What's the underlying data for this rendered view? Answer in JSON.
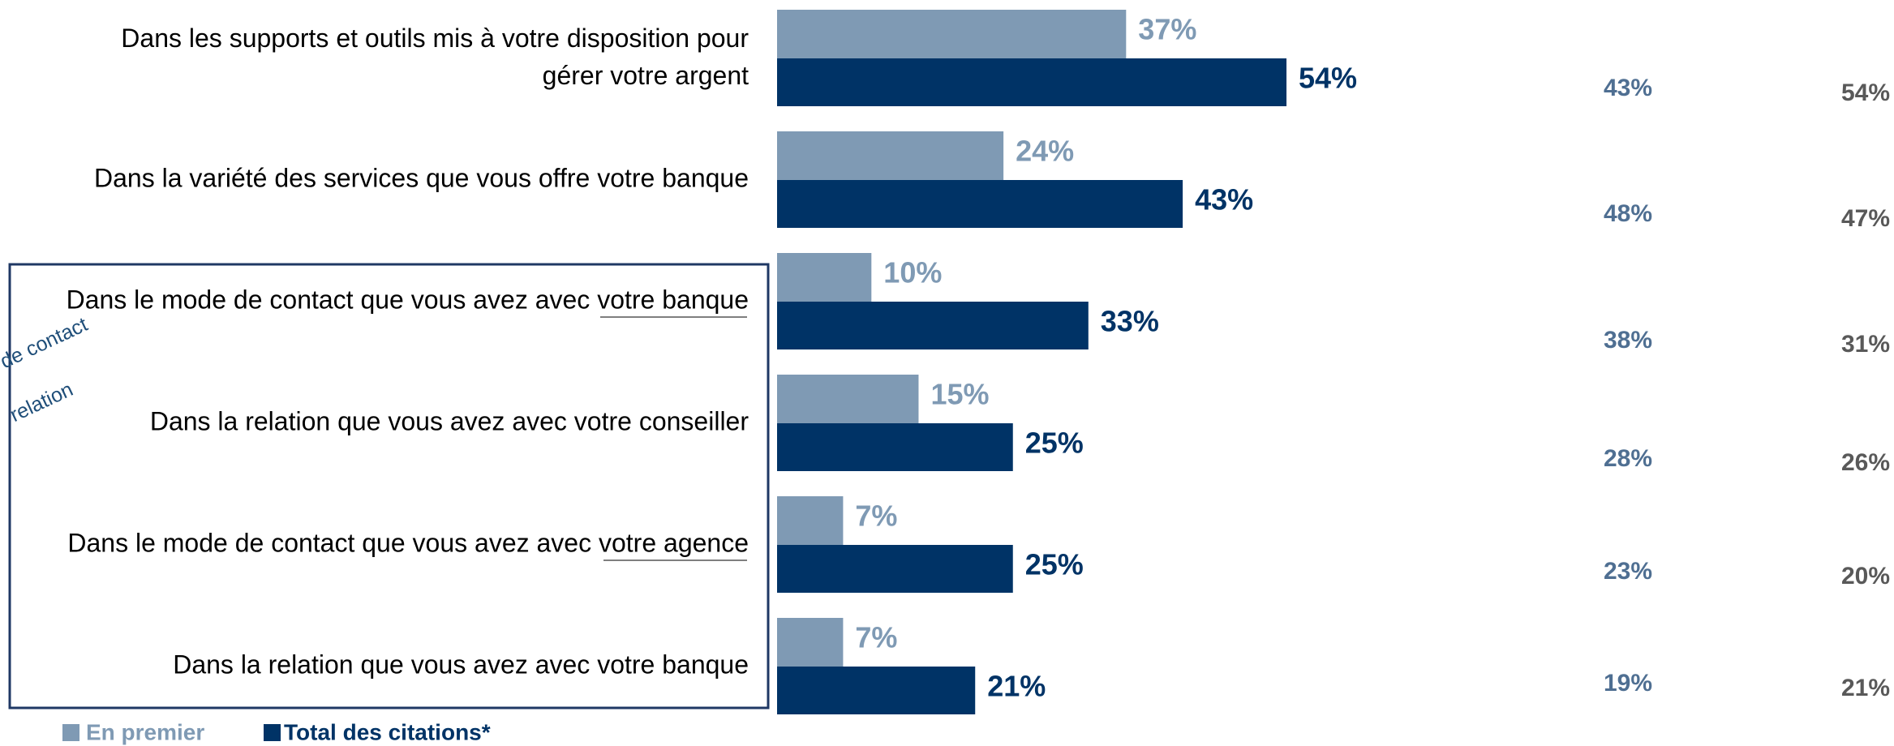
{
  "chart_data": {
    "type": "barh",
    "categories": [
      "Dans les supports et outils mis à votre disposition pour\ngérer votre argent",
      "Dans la variété des services que vous offre votre banque",
      "Dans le mode de contact que vous avez avec votre banque",
      "Dans la relation que vous avez avec votre conseiller",
      "Dans le mode de contact que vous avez avec votre agence",
      "Dans la relation que vous avez avec votre banque"
    ],
    "series": [
      {
        "name": "En premier",
        "color": "#7f9ab4",
        "values": [
          37,
          24,
          10,
          15,
          7,
          7
        ],
        "value_labels": [
          "37%",
          "24%",
          "10%",
          "15%",
          "7%",
          "7%"
        ]
      },
      {
        "name": "Total des citations*",
        "color": "#003366",
        "values": [
          54,
          43,
          33,
          25,
          25,
          21
        ],
        "value_labels": [
          "54%",
          "43%",
          "33%",
          "25%",
          "25%",
          "21%"
        ]
      }
    ],
    "columns": [
      {
        "color": "#4f6f92",
        "values": [
          43,
          48,
          38,
          28,
          23,
          19
        ],
        "value_labels": [
          "43%",
          "48%",
          "38%",
          "28%",
          "23%",
          "19%"
        ]
      },
      {
        "color": "#595959",
        "values": [
          54,
          47,
          31,
          26,
          20,
          21
        ],
        "value_labels": [
          "54%",
          "47%",
          "31%",
          "26%",
          "20%",
          "21%"
        ]
      }
    ],
    "annotations": [
      "de contact",
      "relation"
    ]
  }
}
